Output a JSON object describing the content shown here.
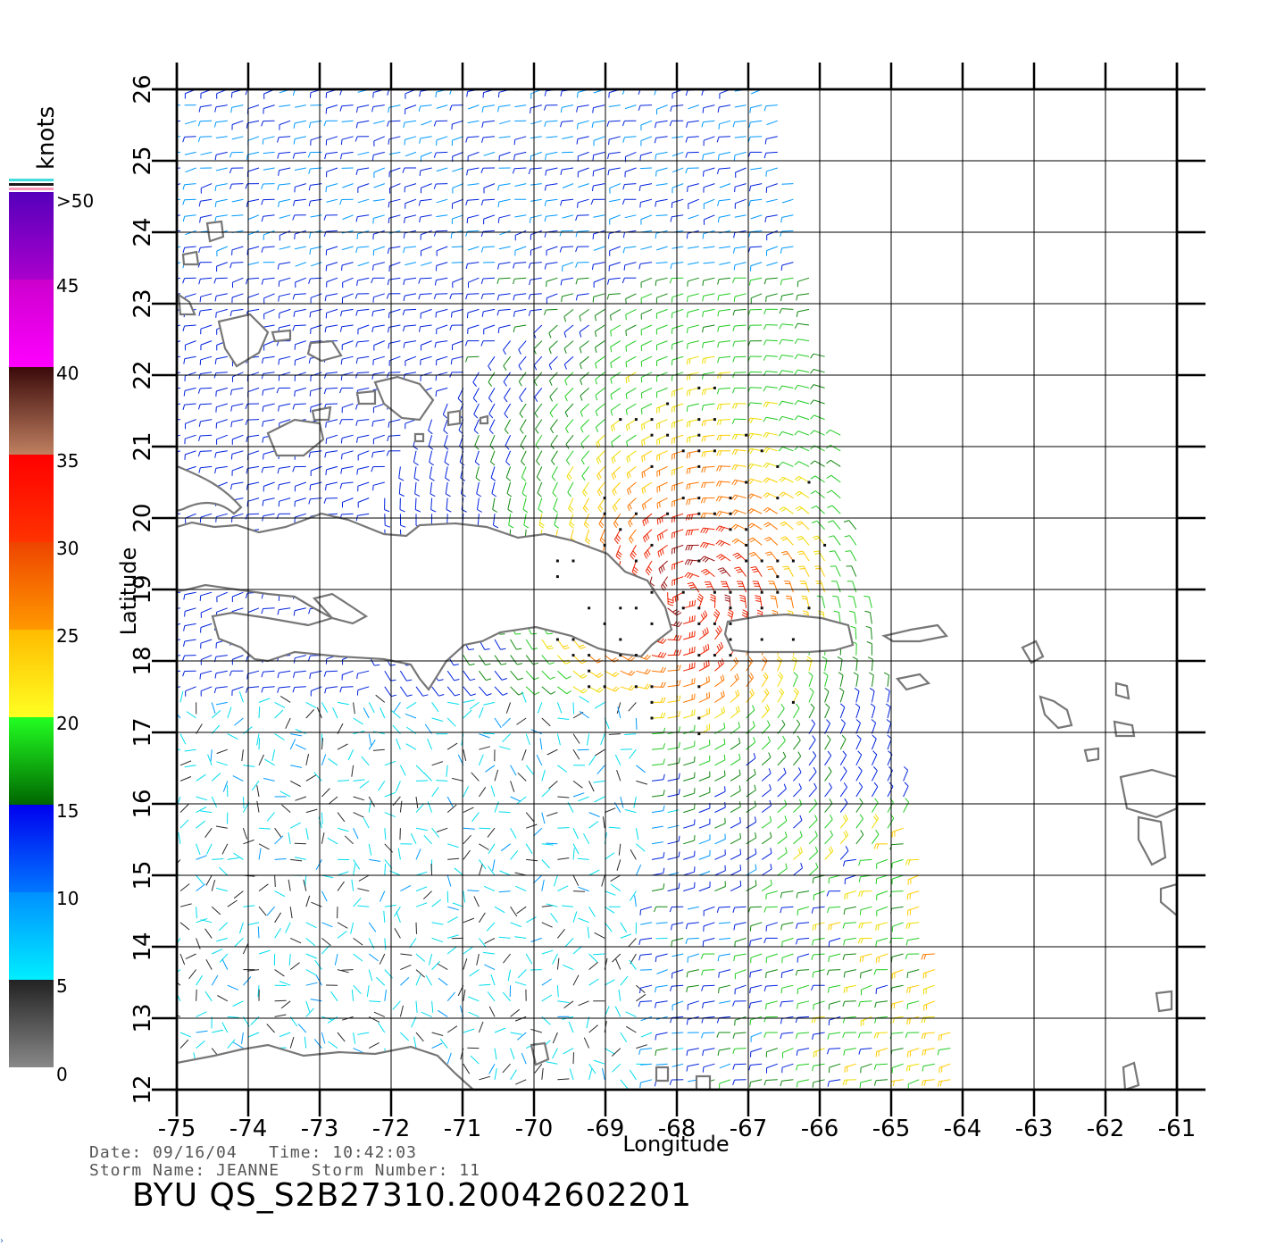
{
  "axes": {
    "xlabel": "Longitude",
    "ylabel": "Latitude",
    "x_ticks": [
      "-75",
      "-74",
      "-73",
      "-72",
      "-71",
      "-70",
      "-69",
      "-68",
      "-67",
      "-66",
      "-65",
      "-64",
      "-63",
      "-62",
      "-61"
    ],
    "y_ticks": [
      "12",
      "13",
      "14",
      "15",
      "16",
      "17",
      "18",
      "19",
      "20",
      "21",
      "22",
      "23",
      "24",
      "25",
      "26"
    ],
    "xlim": [
      -75,
      -61
    ],
    "ylim": [
      12,
      26
    ]
  },
  "colorbar": {
    "unit_label": "knots",
    "labels": [
      ">50",
      "45",
      "40",
      "35",
      "30",
      "25",
      "20",
      "15",
      "10",
      "5",
      "0"
    ],
    "stops": [
      {
        "from": 0,
        "to": 5,
        "colors": [
          "#888888",
          "#222222"
        ]
      },
      {
        "from": 5,
        "to": 10,
        "colors": [
          "#00eeff",
          "#0090ff"
        ]
      },
      {
        "from": 10,
        "to": 15,
        "colors": [
          "#0077ff",
          "#0000ee"
        ]
      },
      {
        "from": 15,
        "to": 20,
        "colors": [
          "#006600",
          "#22ff22"
        ]
      },
      {
        "from": 20,
        "to": 25,
        "colors": [
          "#ffff22",
          "#ffbb00"
        ]
      },
      {
        "from": 25,
        "to": 30,
        "colors": [
          "#ff9900",
          "#ee4400"
        ]
      },
      {
        "from": 30,
        "to": 35,
        "colors": [
          "#ff3300",
          "#ff0000"
        ]
      },
      {
        "from": 35,
        "to": 40,
        "colors": [
          "#c08060",
          "#3a0a0a"
        ]
      },
      {
        "from": 40,
        "to": 45,
        "colors": [
          "#ff00ff",
          "#cc00cc"
        ]
      },
      {
        "from": 45,
        "to": 50,
        "colors": [
          "#aa00cc",
          "#5500bb"
        ]
      }
    ]
  },
  "info": {
    "line1": "Date: 09/16/04   Time: 10:42:03",
    "line2": "Storm Name: JEANNE   Storm Number: 11",
    "title": "BYU QS_S2B27310.20042602201"
  },
  "storm_center": {
    "lon": -67.9,
    "lat": 18.9
  },
  "swath_edges": {
    "lon_at_26": -66.6,
    "lon_at_12": -64.0
  },
  "corner_mark": "›"
}
